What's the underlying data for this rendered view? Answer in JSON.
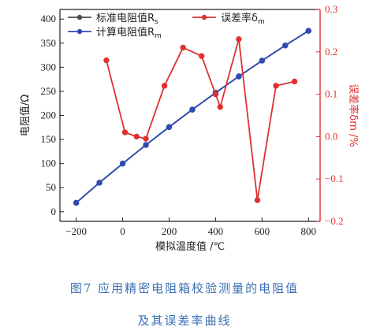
{
  "chart_data": {
    "type": "line",
    "xlabel": "模拟温度值 /℃",
    "x_ticks": [
      -200,
      0,
      200,
      400,
      600,
      800
    ],
    "xlim": [
      -270,
      850
    ],
    "left_axis": {
      "label": "电阻值/Ω",
      "ylim": [
        -20,
        420
      ],
      "ticks": [
        0,
        50,
        100,
        150,
        200,
        250,
        300,
        350,
        400
      ]
    },
    "right_axis": {
      "label": "误差率δm /%",
      "ylim": [
        -0.2,
        0.3
      ],
      "ticks": [
        -0.2,
        -0.1,
        0.0,
        0.1,
        0.2,
        0.3
      ],
      "tick_labels": [
        "-0.2",
        "-0.1",
        "0.0",
        "0.1",
        "0.2",
        "0.3"
      ]
    },
    "series": [
      {
        "name": "标准电阻值Rs",
        "axis": "left",
        "color": "#4d4d4d",
        "x": [
          -200,
          -100,
          0,
          100,
          200,
          300,
          400,
          500,
          600,
          700,
          800
        ],
        "values": [
          18.52,
          60.26,
          100.0,
          138.51,
          175.86,
          212.05,
          247.09,
          280.98,
          313.71,
          345.28,
          375.7
        ]
      },
      {
        "name": "计算电阻值Rm",
        "axis": "left",
        "color": "#2f4bb3",
        "x": [
          -200,
          -100,
          0,
          100,
          200,
          300,
          400,
          500,
          600,
          700,
          800
        ],
        "values": [
          18.52,
          60.26,
          100.0,
          138.51,
          175.86,
          212.05,
          247.09,
          280.98,
          313.71,
          345.28,
          375.7
        ]
      },
      {
        "name": "误差率δm",
        "axis": "right",
        "color": "#e03030",
        "x": [
          -70,
          10,
          60,
          100,
          180,
          260,
          340,
          400,
          420,
          500,
          580,
          660,
          740
        ],
        "values": [
          0.18,
          0.01,
          0.0,
          -0.005,
          0.12,
          0.21,
          0.19,
          0.1,
          0.07,
          0.23,
          -0.15,
          0.12,
          0.13
        ]
      }
    ],
    "legend": [
      {
        "label_main": "标准电阻值R",
        "label_sub": "s",
        "color": "#4d4d4d"
      },
      {
        "label_main": "计算电阻值R",
        "label_sub": "m",
        "color": "#2f4bb3"
      },
      {
        "label_main": "误差率δ",
        "label_sub": "m",
        "color": "#e03030"
      }
    ],
    "grid": false,
    "legend_position": "top-left"
  },
  "caption": {
    "line1": "图7  应用精密电阻箱校验测量的电阻值",
    "line2": "及其误差率曲线"
  }
}
